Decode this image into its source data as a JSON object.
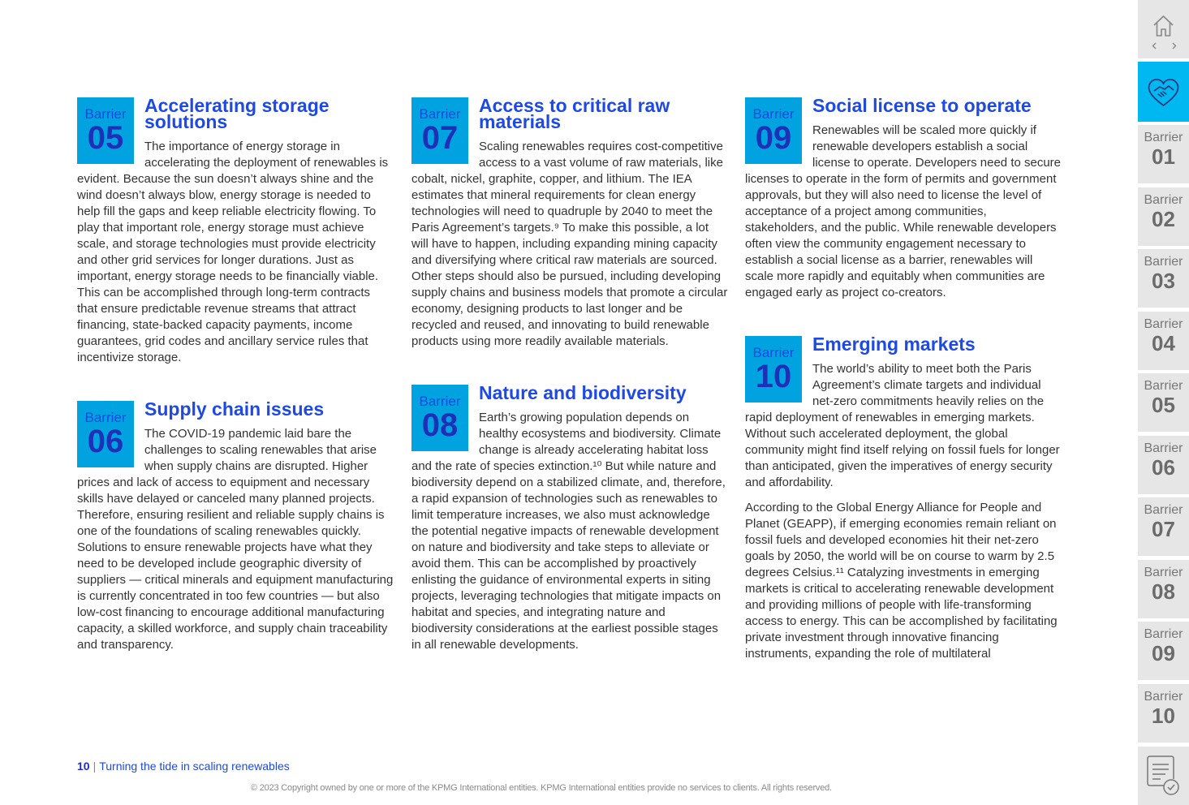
{
  "barrier_label": "Barrier",
  "columns": [
    [
      {
        "number": "05",
        "title": "Accelerating storage solutions",
        "paragraphs": [
          "The importance of energy storage in accelerating the deployment of renewables is evident. Because the sun doesn’t always shine and the wind doesn’t always blow, energy storage is needed to help fill the gaps and keep reliable electricity flowing. To play that important role, energy storage must achieve scale, and storage technologies must provide electricity and other grid services for longer durations. Just as important, energy storage needs to be financially viable. This can be accomplished through long-term contracts that ensure predictable revenue streams that attract financing, state-backed capacity payments, income guarantees, grid codes and ancillary service rules that incentivize storage."
        ]
      },
      {
        "number": "06",
        "title": "Supply chain issues",
        "paragraphs": [
          "The COVID-19 pandemic laid bare the challenges to scaling renewables that arise when supply chains are disrupted. Higher prices and lack of access to equipment and necessary skills have delayed or canceled many planned projects. Therefore, ensuring resilient and reliable supply chains is one of the foundations of scaling renewables quickly. Solutions to ensure renewable projects have what they need to be developed include geographic diversity of suppliers — critical minerals and equipment manufacturing is currently concentrated in too few countries — but also low-cost financing to encourage additional manufacturing capacity, a skilled workforce, and supply chain traceability and transparency."
        ]
      }
    ],
    [
      {
        "number": "07",
        "title": "Access to critical raw materials",
        "paragraphs": [
          "Scaling renewables requires cost-competitive access to a vast volume of raw materials, like cobalt, nickel, graphite, copper, and lithium. The IEA estimates that mineral requirements for clean energy technologies will need to quadruple by 2040 to meet the Paris Agreement’s targets.⁹ To make this possible, a lot will have to happen, including expanding mining capacity and diversifying where critical raw materials are sourced. Other steps should also be pursued, including developing supply chains and business models that promote a circular economy, designing products to last longer and be recycled and reused, and innovating to build renewable products using more readily available materials."
        ]
      },
      {
        "number": "08",
        "title": "Nature and biodiversity",
        "paragraphs": [
          "Earth’s growing population depends on healthy ecosystems and biodiversity. Climate change is already accelerating habitat loss and the rate of species extinction.¹⁰ But while nature and biodiversity depend on a stabilized climate, and, therefore, a rapid expansion of technologies such as renewables to limit temperature increases, we also must acknowledge the potential negative impacts of renewable development on nature and biodiversity and take steps to alleviate or avoid them. This can be accomplished by proactively enlisting the guidance of environmental experts in siting projects, leveraging technologies that mitigate impacts on habitat and species, and integrating nature and biodiversity considerations at the earliest possible stages in all renewable developments."
        ]
      }
    ],
    [
      {
        "number": "09",
        "title": "Social license to operate",
        "paragraphs": [
          "Renewables will be scaled more quickly if renewable developers establish a social license to operate. Developers need to secure licenses to operate in the form of permits and government approvals, but they will also need to license the level of acceptance of a project among communities, stakeholders, and the public. While renewable developers often view the community engagement necessary to establish a social license as a barrier, renewables will scale more rapidly and equitably when communities are engaged early as project co-creators."
        ]
      },
      {
        "number": "10",
        "title": "Emerging markets",
        "paragraphs": [
          "The world’s ability to meet both the Paris Agreement’s climate targets and individual net-zero commitments heavily relies on the rapid deployment of renewables in emerging markets. Without such accelerated deployment, the global community might find itself relying on fossil fuels for longer than anticipated, given the imperatives of energy security and affordability.",
          "According to the Global Energy Alliance for People and Planet (GEAPP), if emerging economies remain reliant on fossil fuels and developed economies hit their net-zero goals by 2050, the world will be on course to warm by 2.5 degrees Celsius.¹¹ Catalyzing investments in emerging markets is critical to accelerating renewable development and providing millions of people with life-transforming access to energy. This can be accomplished by facilitating private investment through innovative financing instruments, expanding the role of multilateral"
        ]
      }
    ]
  ],
  "sidebar": {
    "items": [
      {
        "label": "Barrier",
        "number": "01"
      },
      {
        "label": "Barrier",
        "number": "02"
      },
      {
        "label": "Barrier",
        "number": "03"
      },
      {
        "label": "Barrier",
        "number": "04"
      },
      {
        "label": "Barrier",
        "number": "05"
      },
      {
        "label": "Barrier",
        "number": "06"
      },
      {
        "label": "Barrier",
        "number": "07"
      },
      {
        "label": "Barrier",
        "number": "08"
      },
      {
        "label": "Barrier",
        "number": "09"
      },
      {
        "label": "Barrier",
        "number": "10"
      }
    ]
  },
  "footer": {
    "page_number": "10",
    "separator": "|",
    "doc_title": "Turning the tide in scaling renewables",
    "copyright": "© 2023 Copyright owned by one or more of the KPMG International entities. KPMG International entities provide no services to clients. All rights reserved."
  },
  "icons": {
    "home": "home-icon",
    "prev": "chevron-left-icon",
    "next": "chevron-right-icon",
    "handshake": "handshake-icon",
    "checklist": "checklist-icon"
  },
  "colors": {
    "accent_blue": "#1e49e2",
    "badge_cyan": "#00a3e0",
    "sidebar_grey": "#e6e6e6",
    "sidebar_active": "#00b8f1"
  }
}
